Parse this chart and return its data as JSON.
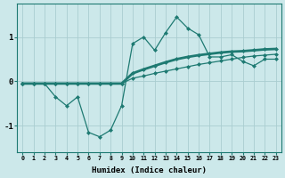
{
  "xlabel": "Humidex (Indice chaleur)",
  "bg_color": "#cce8ea",
  "grid_color": "#aacdd0",
  "line_color": "#1e7a72",
  "ylim": [
    -1.6,
    1.75
  ],
  "yticks": [
    -1,
    0,
    1
  ],
  "x_ticks": [
    0,
    1,
    2,
    3,
    4,
    5,
    6,
    7,
    8,
    9,
    10,
    11,
    12,
    13,
    14,
    15,
    16,
    17,
    18,
    19,
    20,
    21,
    22,
    23
  ],
  "x_labels": [
    "0",
    "1",
    "2",
    "3",
    "4",
    "5",
    "6",
    "7",
    "8",
    "9",
    "10",
    "11",
    "12",
    "13",
    "14",
    "15",
    "16",
    "17",
    "18",
    "19",
    "20",
    "21",
    "22",
    "23"
  ],
  "series1_x": [
    0,
    1,
    2,
    3,
    4,
    5,
    6,
    7,
    8,
    9,
    10,
    11,
    12,
    13,
    14,
    15,
    16,
    17,
    18,
    19,
    20,
    21,
    22,
    23
  ],
  "series1_y": [
    -0.05,
    -0.05,
    -0.05,
    -0.35,
    -0.55,
    -0.35,
    -1.15,
    -1.25,
    -1.1,
    -0.55,
    0.85,
    1.0,
    0.7,
    1.1,
    1.45,
    1.2,
    1.05,
    0.55,
    0.55,
    0.6,
    0.45,
    0.35,
    0.5,
    0.5
  ],
  "series2_x": [
    0,
    1,
    2,
    3,
    4,
    5,
    6,
    7,
    8,
    9,
    10,
    11,
    12,
    13,
    14,
    15,
    16,
    17,
    18,
    19,
    20,
    21,
    22,
    23
  ],
  "series2_y": [
    -0.05,
    -0.05,
    -0.05,
    -0.05,
    -0.05,
    -0.05,
    -0.05,
    -0.05,
    -0.05,
    -0.05,
    0.18,
    0.27,
    0.35,
    0.43,
    0.5,
    0.55,
    0.59,
    0.62,
    0.65,
    0.67,
    0.68,
    0.7,
    0.72,
    0.73
  ],
  "series3_x": [
    0,
    1,
    2,
    3,
    4,
    5,
    6,
    7,
    8,
    9,
    10,
    11,
    12,
    13,
    14,
    15,
    16,
    17,
    18,
    19,
    20,
    21,
    22,
    23
  ],
  "series3_y": [
    -0.05,
    -0.05,
    -0.05,
    -0.05,
    -0.05,
    -0.05,
    -0.05,
    -0.05,
    -0.05,
    -0.05,
    0.07,
    0.12,
    0.18,
    0.23,
    0.28,
    0.33,
    0.38,
    0.42,
    0.46,
    0.5,
    0.54,
    0.57,
    0.59,
    0.61
  ]
}
